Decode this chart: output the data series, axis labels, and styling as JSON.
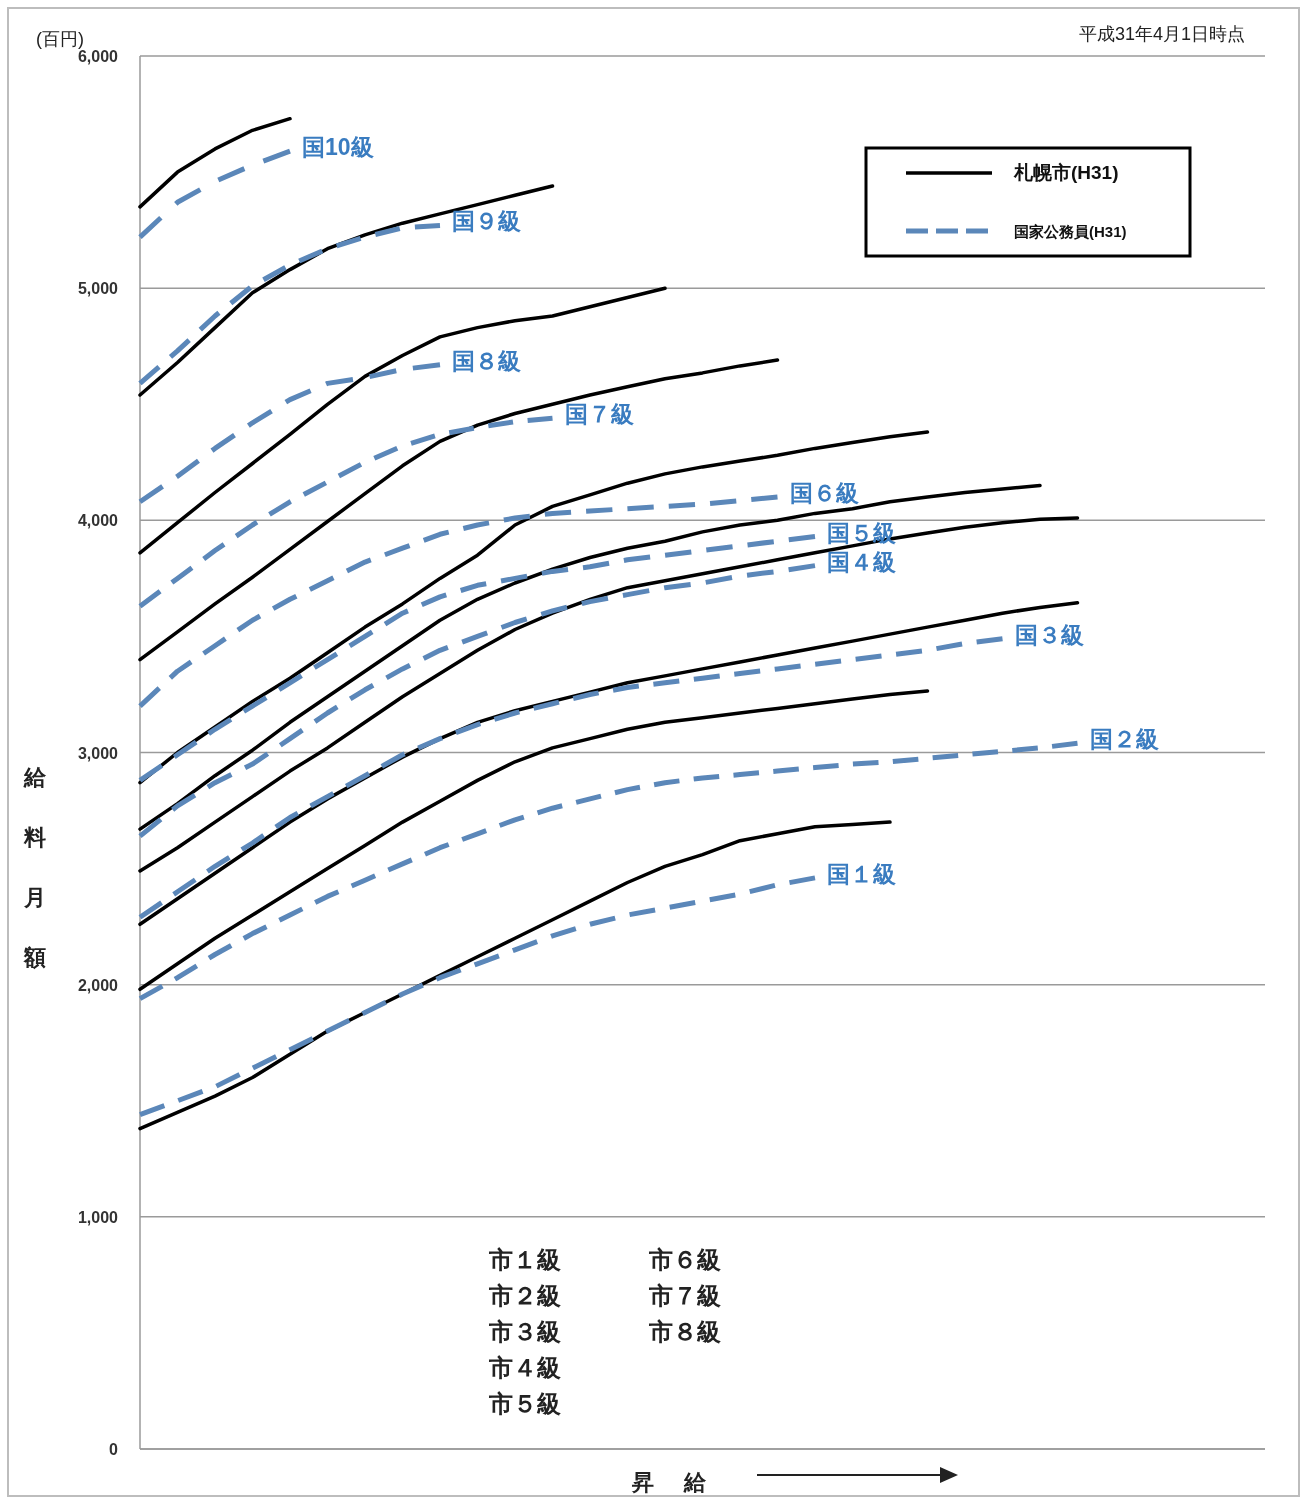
{
  "chart_data": {
    "type": "line",
    "xlabel": "昇給",
    "ylabel": "給料月額",
    "categories": [
      null,
      null,
      null,
      null,
      null,
      null,
      null,
      null,
      null,
      null,
      null,
      null,
      null,
      null,
      null,
      null,
      null,
      null,
      null,
      null,
      null,
      null,
      null,
      null,
      null,
      null,
      null,
      null,
      null,
      null,
      null
    ],
    "ylim": [
      0,
      6000
    ],
    "yticks": [
      {
        "value": 0,
        "label": "0"
      },
      {
        "value": 1000,
        "label": "1,000"
      },
      {
        "value": 2000,
        "label": "2,000"
      },
      {
        "value": 3000,
        "label": "3,000"
      },
      {
        "value": 4000,
        "label": "4,000"
      },
      {
        "value": 5000,
        "label": "5,000"
      },
      {
        "value": 6000,
        "label": "6,000"
      }
    ],
    "grid": "y",
    "tick_labels": "y",
    "legend": "top right",
    "annotations": [
      "平成31年4月1日時点",
      "(百円)",
      "札幌市(H31)",
      "国家公務員(H31)",
      "市１級",
      "市２級",
      "市３級",
      "市４級",
      "市５級",
      "市６級",
      "市７級",
      "市８級"
    ],
    "series": [
      {
        "color": "#000000",
        "line_style": "solid",
        "values": [
          1380,
          1450,
          1520,
          1600,
          1700,
          1800,
          1880,
          1960,
          2040,
          2120,
          2200,
          2280,
          2360,
          2440,
          2510,
          2560,
          2620,
          2650,
          2680,
          2690,
          2700,
          null,
          null,
          null,
          null,
          null,
          null,
          null,
          null,
          null,
          null
        ]
      },
      {
        "color": "#000000",
        "line_style": "solid",
        "values": [
          1980,
          2090,
          2200,
          2300,
          2400,
          2500,
          2600,
          2700,
          2790,
          2880,
          2960,
          3020,
          3060,
          3100,
          3130,
          3150,
          3170,
          3190,
          3210,
          3230,
          3250,
          3265,
          null,
          null,
          null,
          null,
          null,
          null,
          null,
          null,
          null
        ]
      },
      {
        "color": "#000000",
        "line_style": "solid",
        "values": [
          2260,
          2370,
          2480,
          2590,
          2700,
          2800,
          2890,
          2980,
          3060,
          3130,
          3180,
          3220,
          3260,
          3300,
          3330,
          3360,
          3390,
          3420,
          3450,
          3480,
          3510,
          3540,
          3570,
          3600,
          3625,
          3645,
          null,
          null,
          null,
          null,
          null
        ]
      },
      {
        "color": "#000000",
        "line_style": "solid",
        "values": [
          2490,
          2590,
          2700,
          2810,
          2920,
          3020,
          3130,
          3240,
          3340,
          3440,
          3530,
          3600,
          3660,
          3710,
          3740,
          3770,
          3800,
          3830,
          3860,
          3890,
          3920,
          3945,
          3970,
          3990,
          4005,
          4010,
          null,
          null,
          null,
          null,
          null
        ]
      },
      {
        "color": "#000000",
        "line_style": "solid",
        "values": [
          2670,
          2780,
          2900,
          3010,
          3130,
          3240,
          3350,
          3460,
          3570,
          3660,
          3730,
          3790,
          3840,
          3880,
          3910,
          3950,
          3980,
          4000,
          4030,
          4050,
          4080,
          4100,
          4120,
          4135,
          4150,
          null,
          null,
          null,
          null,
          null,
          null
        ]
      },
      {
        "color": "#000000",
        "line_style": "solid",
        "values": [
          2870,
          3000,
          3110,
          3220,
          3320,
          3430,
          3540,
          3640,
          3750,
          3850,
          3980,
          4060,
          4110,
          4160,
          4200,
          4230,
          4255,
          4280,
          4310,
          4335,
          4360,
          4380,
          null,
          null,
          null,
          null,
          null,
          null,
          null,
          null,
          null
        ]
      },
      {
        "color": "#000000",
        "line_style": "solid",
        "values": [
          3400,
          3520,
          3640,
          3755,
          3875,
          3995,
          4115,
          4235,
          4340,
          4410,
          4460,
          4500,
          4540,
          4575,
          4610,
          4635,
          4665,
          4690,
          null,
          null,
          null,
          null,
          null,
          null,
          null,
          null,
          null,
          null,
          null,
          null,
          null
        ]
      },
      {
        "color": "#000000",
        "line_style": "solid",
        "values": [
          3860,
          3990,
          4120,
          4245,
          4370,
          4500,
          4620,
          4710,
          4790,
          4830,
          4860,
          4880,
          4920,
          4960,
          5000,
          null,
          null,
          null,
          null,
          null,
          null,
          null,
          null,
          null,
          null,
          null,
          null,
          null,
          null,
          null,
          null
        ]
      },
      {
        "color": "#000000",
        "line_style": "solid",
        "values": [
          4540,
          4680,
          4830,
          4980,
          5080,
          5170,
          5230,
          5280,
          5320,
          5360,
          5400,
          5440,
          null,
          null,
          null,
          null,
          null,
          null,
          null,
          null,
          null,
          null,
          null,
          null,
          null,
          null,
          null,
          null,
          null,
          null,
          null
        ]
      },
      {
        "color": "#000000",
        "line_style": "solid",
        "values": [
          5350,
          5500,
          5600,
          5680,
          5730,
          null,
          null,
          null,
          null,
          null,
          null,
          null,
          null,
          null,
          null,
          null,
          null,
          null,
          null,
          null,
          null,
          null,
          null,
          null,
          null,
          null,
          null,
          null,
          null,
          null,
          null
        ]
      },
      {
        "name": "国１級",
        "color": "#5b87b9",
        "line_style": "dashed",
        "values": [
          1440,
          1500,
          1560,
          1640,
          1720,
          1800,
          1880,
          1960,
          2030,
          2090,
          2150,
          2210,
          2260,
          2300,
          2330,
          2360,
          2390,
          2430,
          2460,
          null,
          null,
          null,
          null,
          null,
          null,
          null,
          null,
          null,
          null,
          null,
          null
        ]
      },
      {
        "name": "国２級",
        "color": "#5b87b9",
        "line_style": "dashed",
        "values": [
          1940,
          2030,
          2130,
          2220,
          2300,
          2380,
          2450,
          2520,
          2590,
          2650,
          2710,
          2760,
          2800,
          2840,
          2870,
          2890,
          2905,
          2920,
          2935,
          2950,
          2960,
          2975,
          2990,
          3005,
          3020,
          3040,
          null,
          null,
          null,
          null,
          null
        ]
      },
      {
        "name": "国３級",
        "color": "#5b87b9",
        "line_style": "dashed",
        "values": [
          2290,
          2400,
          2510,
          2610,
          2720,
          2810,
          2900,
          2990,
          3060,
          3120,
          3170,
          3210,
          3250,
          3280,
          3300,
          3320,
          3340,
          3360,
          3380,
          3400,
          3420,
          3440,
          3470,
          3490,
          null,
          null,
          null,
          null,
          null,
          null,
          null
        ]
      },
      {
        "name": "国４級",
        "color": "#5b87b9",
        "line_style": "dashed",
        "values": [
          2640,
          2770,
          2870,
          2950,
          3060,
          3170,
          3270,
          3360,
          3440,
          3500,
          3560,
          3610,
          3650,
          3680,
          3710,
          3730,
          3760,
          3780,
          3805,
          null,
          null,
          null,
          null,
          null,
          null,
          null,
          null,
          null,
          null,
          null,
          null
        ]
      },
      {
        "name": "国５級",
        "color": "#5b87b9",
        "line_style": "dashed",
        "values": [
          2880,
          2990,
          3100,
          3200,
          3300,
          3400,
          3500,
          3600,
          3670,
          3720,
          3750,
          3780,
          3800,
          3830,
          3850,
          3870,
          3890,
          3910,
          3930,
          null,
          null,
          null,
          null,
          null,
          null,
          null,
          null,
          null,
          null,
          null,
          null
        ]
      },
      {
        "name": "国６級",
        "color": "#5b87b9",
        "line_style": "dashed",
        "values": [
          3200,
          3350,
          3460,
          3570,
          3660,
          3740,
          3820,
          3880,
          3940,
          3980,
          4010,
          4030,
          4040,
          4050,
          4060,
          4070,
          4085,
          4100,
          null,
          null,
          null,
          null,
          null,
          null,
          null,
          null,
          null,
          null,
          null,
          null,
          null
        ]
      },
      {
        "name": "国７級",
        "color": "#5b87b9",
        "line_style": "dashed",
        "values": [
          3630,
          3750,
          3870,
          3980,
          4080,
          4165,
          4250,
          4320,
          4370,
          4400,
          4425,
          4440,
          null,
          null,
          null,
          null,
          null,
          null,
          null,
          null,
          null,
          null,
          null,
          null,
          null,
          null,
          null,
          null,
          null,
          null,
          null
        ]
      },
      {
        "name": "国８級",
        "color": "#5b87b9",
        "line_style": "dashed",
        "values": [
          4080,
          4190,
          4310,
          4420,
          4520,
          4590,
          4615,
          4650,
          4670,
          null,
          null,
          null,
          null,
          null,
          null,
          null,
          null,
          null,
          null,
          null,
          null,
          null,
          null,
          null,
          null,
          null,
          null,
          null,
          null,
          null,
          null
        ]
      },
      {
        "name": "国９級",
        "color": "#5b87b9",
        "line_style": "dashed",
        "values": [
          4590,
          4730,
          4880,
          5010,
          5100,
          5170,
          5220,
          5260,
          5270,
          null,
          null,
          null,
          null,
          null,
          null,
          null,
          null,
          null,
          null,
          null,
          null,
          null,
          null,
          null,
          null,
          null,
          null,
          null,
          null,
          null,
          null
        ]
      },
      {
        "name": "国10級",
        "color": "#5b87b9",
        "line_style": "dashed",
        "values": [
          5220,
          5370,
          5460,
          5530,
          5590,
          null,
          null,
          null,
          null,
          null,
          null,
          null,
          null,
          null,
          null,
          null,
          null,
          null,
          null,
          null,
          null,
          null,
          null,
          null,
          null,
          null,
          null,
          null,
          null,
          null,
          null
        ]
      }
    ]
  }
}
